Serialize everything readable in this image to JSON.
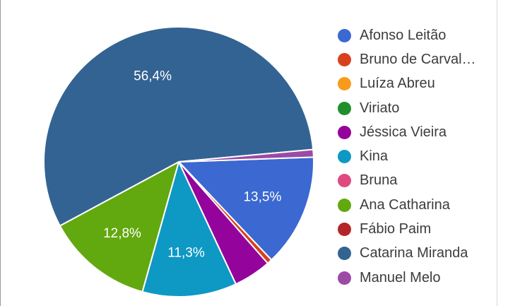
{
  "chart_data": {
    "type": "pie",
    "slices": [
      {
        "name": "Afonso Leitão",
        "value": 13.5,
        "label": "13,5%",
        "color": "#3b68d1"
      },
      {
        "name": "Bruno de Carval…",
        "value": 0.6,
        "label": "",
        "color": "#d9411c"
      },
      {
        "name": "Luíza Abreu",
        "value": 0,
        "label": "",
        "color": "#f89a1c"
      },
      {
        "name": "Viriato",
        "value": 0,
        "label": "",
        "color": "#1f8f2c"
      },
      {
        "name": "Jéssica Vieira",
        "value": 4.5,
        "label": "",
        "color": "#94049c"
      },
      {
        "name": "Kina",
        "value": 11.3,
        "label": "11,3%",
        "color": "#0e98c4"
      },
      {
        "name": "Bruna",
        "value": 0,
        "label": "",
        "color": "#de4a80"
      },
      {
        "name": "Ana Catharina",
        "value": 12.8,
        "label": "12,8%",
        "color": "#62a80f"
      },
      {
        "name": "Fábio Paim",
        "value": 0,
        "label": "",
        "color": "#b62525"
      },
      {
        "name": "Catarina Miranda",
        "value": 56.4,
        "label": "56,4%",
        "color": "#336392"
      },
      {
        "name": "Manuel Melo",
        "value": 0.9,
        "label": "",
        "color": "#9b4aa6"
      }
    ],
    "start_angle_deg": 88,
    "legend_position": "right"
  }
}
